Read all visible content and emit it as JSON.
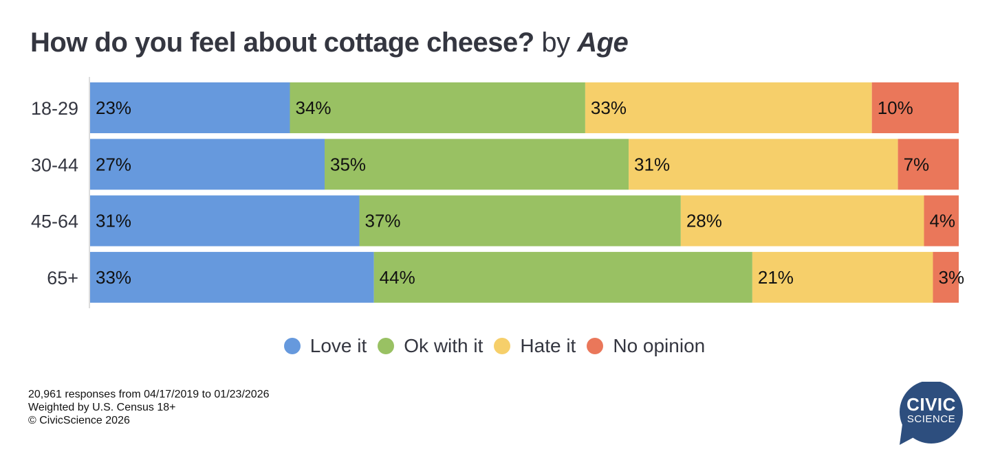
{
  "title": {
    "question": "How do you feel about cottage cheese?",
    "by": "by",
    "dimension": "Age"
  },
  "colors": {
    "love": "#6699dd",
    "ok": "#99c163",
    "hate": "#f6cf6a",
    "none": "#ea775a",
    "text": "#343640",
    "axis": "#dddddd",
    "logo": "#2d4e7e"
  },
  "chart_data": {
    "type": "bar",
    "orientation": "horizontal",
    "stacked": true,
    "title": "How do you feel about cottage cheese? by Age",
    "xlabel": "",
    "ylabel": "",
    "xlim": [
      0,
      100
    ],
    "grid": false,
    "legend_position": "bottom",
    "categories": [
      "18-29",
      "30-44",
      "45-64",
      "65+"
    ],
    "series": [
      {
        "name": "Love it",
        "color": "#6699dd",
        "values": [
          23,
          27,
          31,
          33
        ],
        "labels": [
          "23%",
          "27%",
          "31%",
          "33%"
        ]
      },
      {
        "name": "Ok with it",
        "color": "#99c163",
        "values": [
          34,
          35,
          37,
          44
        ],
        "labels": [
          "34%",
          "35%",
          "37%",
          "44%"
        ]
      },
      {
        "name": "Hate it",
        "color": "#f6cf6a",
        "values": [
          33,
          31,
          28,
          21
        ],
        "labels": [
          "33%",
          "31%",
          "28%",
          "21%"
        ]
      },
      {
        "name": "No opinion",
        "color": "#ea775a",
        "values": [
          10,
          7,
          4,
          3
        ],
        "labels": [
          "10%",
          "7%",
          "4%",
          "3%"
        ]
      }
    ]
  },
  "legend": [
    {
      "label": "Love it",
      "color": "#6699dd"
    },
    {
      "label": "Ok with it",
      "color": "#99c163"
    },
    {
      "label": "Hate it",
      "color": "#f6cf6a"
    },
    {
      "label": "No opinion",
      "color": "#ea775a"
    }
  ],
  "footer": {
    "line1": "20,961 responses from 04/17/2019 to 01/23/2026",
    "line2": "Weighted by U.S. Census 18+",
    "line3": "© CivicScience 2026"
  },
  "logo": {
    "line1": "CIVIC",
    "line2": "SCIENCE"
  }
}
